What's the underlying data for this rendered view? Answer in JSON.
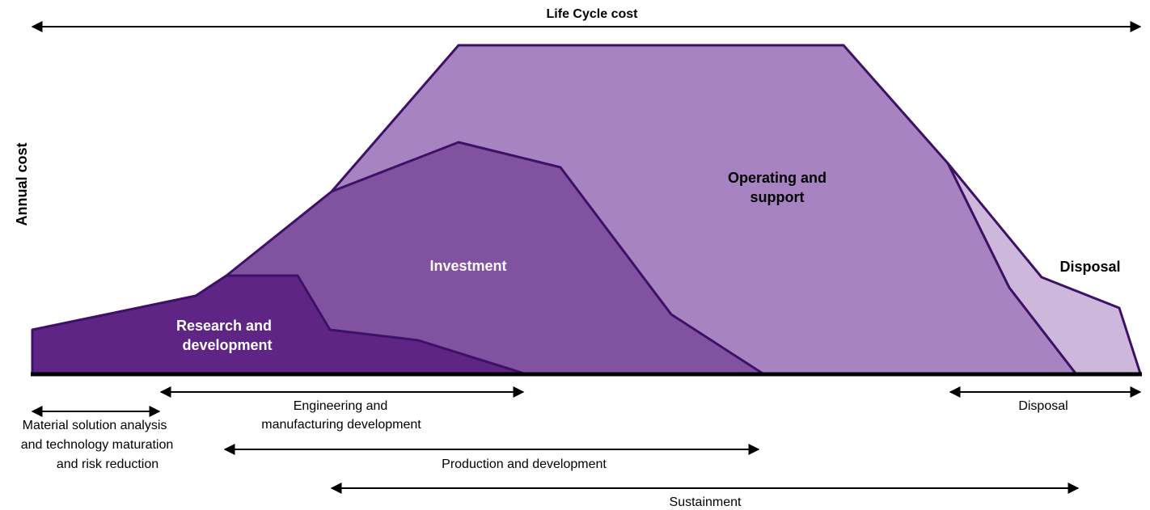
{
  "title": "Life Cycle cost",
  "y_axis_label": "Annual cost",
  "regions": [
    {
      "lines": [
        "Operating and",
        "support"
      ]
    },
    {
      "lines": [
        "Investment"
      ]
    },
    {
      "lines": [
        "Research and",
        "development"
      ]
    },
    {
      "lines": [
        "Disposal"
      ]
    }
  ],
  "phases": [
    {
      "lines": [
        "Material solution analysis",
        "and technology maturation",
        "and risk reduction"
      ]
    },
    {
      "lines": [
        "Engineering and",
        "manufacturing development"
      ]
    },
    {
      "lines": [
        "Production and development"
      ]
    },
    {
      "lines": [
        "Sustainment"
      ]
    },
    {
      "lines": [
        "Disposal"
      ]
    }
  ]
}
